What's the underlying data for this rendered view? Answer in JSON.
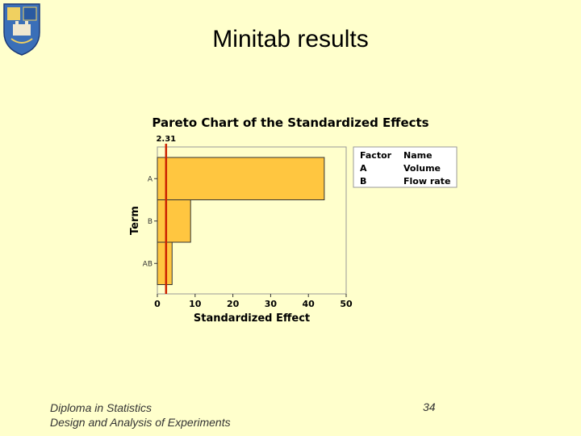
{
  "slide": {
    "title": "Minitab results",
    "footer_line1": "Diploma in Statistics",
    "footer_line2": "Design and Analysis of Experiments",
    "page_number": "34"
  },
  "chart_data": {
    "type": "bar",
    "orientation": "horizontal",
    "title": "Pareto Chart of the Standardized Effects",
    "xlabel": "Standardized Effect",
    "ylabel": "Term",
    "categories": [
      "A",
      "B",
      "AB"
    ],
    "values": [
      44.2,
      8.8,
      3.9
    ],
    "xlim": [
      0,
      50
    ],
    "xticks": [
      0,
      10,
      20,
      30,
      40,
      50
    ],
    "reference_line": {
      "value": 2.31,
      "label": "2.31",
      "color": "#cc2200"
    },
    "bar_color": "#ffc640",
    "legend": {
      "placement": "right",
      "header_factor": "Factor",
      "header_name": "Name",
      "rows": [
        {
          "factor": "A",
          "name": "Volume"
        },
        {
          "factor": "B",
          "name": "Flow rate"
        }
      ]
    }
  }
}
